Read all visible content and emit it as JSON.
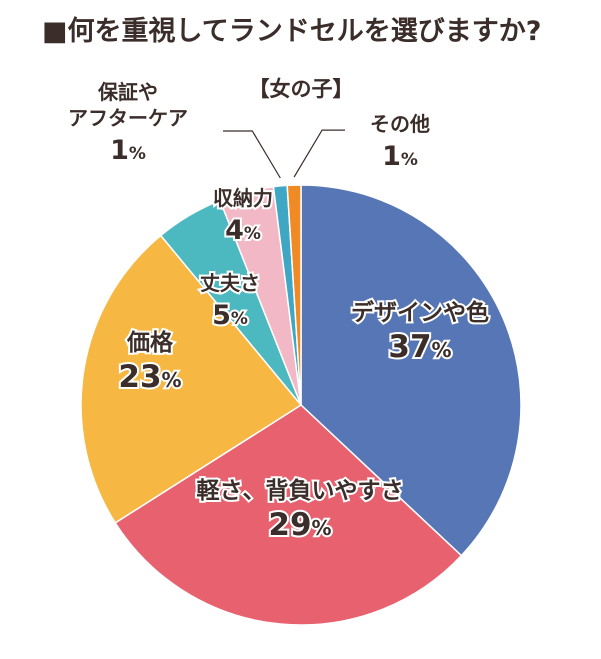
{
  "chart_data": {
    "type": "pie",
    "title": "■何を重視してランドセルを選びますか?",
    "subtitle": "【女の子】",
    "unit": "%",
    "slices": [
      {
        "label": "デザインや色",
        "value": 37,
        "color": "#5676b6"
      },
      {
        "label": "軽さ、背負いやすさ",
        "value": 29,
        "color": "#e8616f"
      },
      {
        "label": "価格",
        "value": 23,
        "color": "#f6b843"
      },
      {
        "label": "丈夫さ",
        "value": 5,
        "color": "#4cb8bf"
      },
      {
        "label": "収納力",
        "value": 4,
        "color": "#f2b8c6"
      },
      {
        "label": "保証やアフターケア",
        "value": 1,
        "color": "#3fa7c4"
      },
      {
        "label": "その他",
        "value": 1,
        "color": "#f08a25"
      }
    ],
    "label_lines": {
      "保証やアフターケア": [
        "保証や",
        "アフターケア"
      ]
    }
  }
}
